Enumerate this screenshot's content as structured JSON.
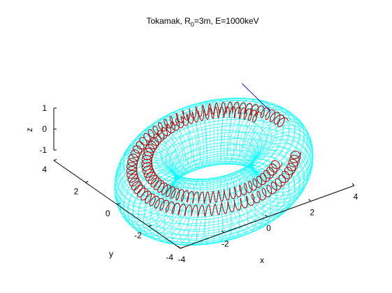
{
  "chart_data": {
    "type": "surface3d",
    "title": "Tokamak, R",
    "title_sub": "0",
    "title_rest": "=3m, E=1000keV",
    "xlabel": "x",
    "ylabel": "y",
    "zlabel": "z",
    "x_ticks": [
      "-4",
      "-2",
      "0",
      "2",
      "4"
    ],
    "y_ticks": [
      "-4",
      "-2",
      "0",
      "2",
      "4"
    ],
    "z_ticks": [
      "-1",
      "0",
      "1"
    ],
    "xlim": [
      -4,
      4
    ],
    "ylim": [
      -4,
      4
    ],
    "zlim": [
      -1,
      1
    ],
    "torus": {
      "major_radius": 3,
      "minor_radius": 1.3
    },
    "grid": false,
    "mesh_color": "#00ffff",
    "trajectory_color": "#d40000",
    "trajectory_outline_color": "#555555",
    "field_line_color": "#0000cc"
  }
}
